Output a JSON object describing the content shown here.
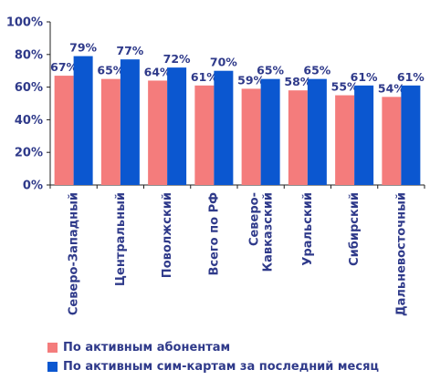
{
  "chart_data": {
    "type": "bar",
    "categories": [
      "Северо-Западный",
      "Центральный",
      "Поволжский",
      "Всего по РФ",
      "Северо-Кавказский",
      "Уральский",
      "Сибирский",
      "Дальневосточный"
    ],
    "category_lines": [
      [
        "Северо-Западный"
      ],
      [
        "Центральный"
      ],
      [
        "Поволжский"
      ],
      [
        "Всего по РФ"
      ],
      [
        "Северо-",
        "Кавказский"
      ],
      [
        "Уральский"
      ],
      [
        "Сибирский"
      ],
      [
        "Дальневосточный"
      ]
    ],
    "series": [
      {
        "name": "По активным абонентам",
        "color": "#f47c7c",
        "values": [
          67,
          65,
          64,
          61,
          59,
          58,
          55,
          54
        ],
        "labels": [
          "67%",
          "65%",
          "64%",
          "61%",
          "59%",
          "58%",
          "55%",
          "54%"
        ]
      },
      {
        "name": "По активным сим-картам за последний месяц",
        "color": "#0b57d0",
        "values": [
          79,
          77,
          72,
          70,
          65,
          65,
          61,
          61
        ],
        "labels": [
          "79%",
          "77%",
          "72%",
          "70%",
          "65%",
          "65%",
          "61%",
          "61%"
        ]
      }
    ],
    "ylim": [
      0,
      100
    ],
    "yticks": [
      0,
      20,
      40,
      60,
      80,
      100
    ],
    "ytick_labels": [
      "0%",
      "20%",
      "40%",
      "60%",
      "80%",
      "100%"
    ],
    "grid": false,
    "legend_position": "bottom"
  }
}
